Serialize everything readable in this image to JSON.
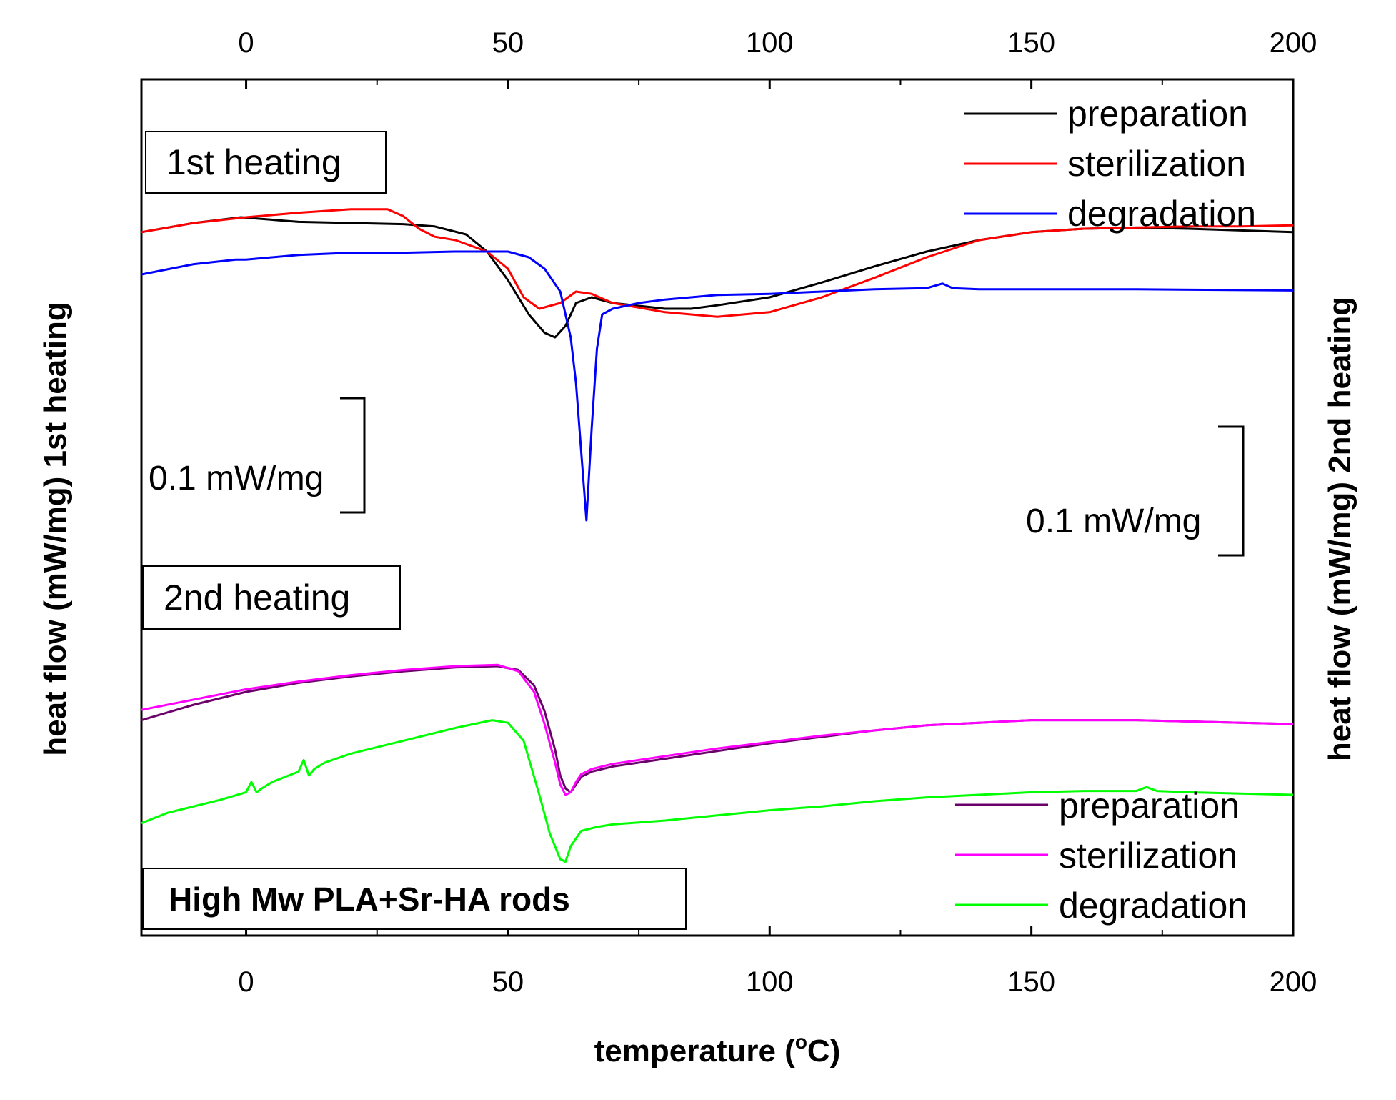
{
  "chart_data": {
    "type": "line",
    "title": "",
    "xlabel": "temperature (°C)",
    "xlabel_base": "temperature (",
    "xlabel_sup": "o",
    "xlabel_unit": "C)",
    "ylabel_left": "heat flow (mW/mg) 1st heating",
    "ylabel_right": "heat flow (mW/mg) 2nd heating",
    "xlim": [
      -20,
      200
    ],
    "x_ticks": [
      "0",
      "50",
      "100",
      "150",
      "200"
    ],
    "x_tick_values": [
      0,
      50,
      100,
      150,
      200
    ],
    "grid": false,
    "sample_label": "High Mw PLA+Sr-HA rods",
    "scale_bars": [
      {
        "name": "scale-bar-1st",
        "text": "0.1 mW/mg",
        "height_mW_mg": 0.1
      },
      {
        "name": "scale-bar-2nd",
        "text": "0.1 mW/mg",
        "height_mW_mg": 0.1
      }
    ],
    "panels": [
      {
        "name": "1st heating",
        "label": "1st heating",
        "legend_position": "top-right",
        "series": [
          {
            "name": "preparation",
            "color": "#000000",
            "x": [
              -20,
              -10,
              -1,
              10,
              30,
              36,
              42,
              46,
              50,
              54,
              57,
              59,
              61,
              63,
              66,
              70,
              80,
              85,
              90,
              100,
              110,
              120,
              130,
              140,
              150,
              160,
              170,
              180,
              200
            ],
            "y": [
              0.052,
              0.06,
              0.065,
              0.061,
              0.059,
              0.057,
              0.05,
              0.035,
              0.01,
              -0.02,
              -0.036,
              -0.04,
              -0.03,
              -0.01,
              -0.005,
              -0.01,
              -0.015,
              -0.015,
              -0.012,
              -0.005,
              0.008,
              0.022,
              0.035,
              0.045,
              0.052,
              0.055,
              0.056,
              0.055,
              0.052
            ]
          },
          {
            "name": "sterilization",
            "color": "#ff0000",
            "x": [
              -20,
              -10,
              0,
              10,
              20,
              27,
              30,
              33,
              36,
              40,
              46,
              50,
              53,
              56,
              60,
              63,
              66,
              70,
              80,
              90,
              100,
              110,
              120,
              130,
              140,
              150,
              160,
              170,
              180,
              190,
              200
            ],
            "y": [
              0.052,
              0.06,
              0.065,
              0.069,
              0.072,
              0.072,
              0.066,
              0.055,
              0.048,
              0.045,
              0.035,
              0.02,
              -0.005,
              -0.015,
              -0.01,
              0.0,
              -0.002,
              -0.01,
              -0.018,
              -0.022,
              -0.018,
              -0.005,
              0.012,
              0.03,
              0.045,
              0.052,
              0.055,
              0.056,
              0.057,
              0.057,
              0.058
            ]
          },
          {
            "name": "degradation",
            "color": "#0000ff",
            "x": [
              -20,
              -10,
              -2,
              0,
              10,
              20,
              30,
              40,
              50,
              54,
              57,
              60,
              62,
              63,
              64,
              65,
              66,
              67,
              68,
              70,
              75,
              80,
              90,
              100,
              110,
              120,
              130,
              133,
              135,
              140,
              150,
              170,
              200
            ],
            "y": [
              0.015,
              0.024,
              0.028,
              0.028,
              0.032,
              0.034,
              0.034,
              0.035,
              0.035,
              0.03,
              0.02,
              0.0,
              -0.04,
              -0.08,
              -0.14,
              -0.2,
              -0.12,
              -0.05,
              -0.02,
              -0.015,
              -0.01,
              -0.007,
              -0.003,
              -0.002,
              0.0,
              0.002,
              0.003,
              0.007,
              0.003,
              0.002,
              0.002,
              0.002,
              0.001
            ]
          }
        ]
      },
      {
        "name": "2nd heating",
        "label": "2nd heating",
        "legend_position": "bottom-right",
        "series": [
          {
            "name": "preparation",
            "color": "#6b006b",
            "x": [
              -20,
              -10,
              0,
              10,
              20,
              30,
              40,
              48,
              52,
              55,
              57,
              59,
              60,
              61,
              62,
              63,
              64,
              66,
              70,
              80,
              90,
              100,
              110,
              120,
              130,
              140,
              150,
              160,
              170,
              180,
              190,
              200
            ],
            "y": [
              -0.002,
              0.01,
              0.02,
              0.027,
              0.032,
              0.036,
              0.039,
              0.04,
              0.037,
              0.025,
              0.005,
              -0.025,
              -0.045,
              -0.055,
              -0.058,
              -0.052,
              -0.046,
              -0.042,
              -0.038,
              -0.032,
              -0.026,
              -0.02,
              -0.015,
              -0.01,
              -0.006,
              -0.004,
              -0.002,
              -0.002,
              -0.002,
              -0.003,
              -0.004,
              -0.005
            ]
          },
          {
            "name": "sterilization",
            "color": "#ff00ff",
            "x": [
              -20,
              -10,
              0,
              10,
              20,
              30,
              40,
              48,
              52,
              55,
              57,
              59,
              60,
              61,
              62,
              63,
              64,
              66,
              70,
              80,
              90,
              100,
              110,
              120,
              130,
              140,
              150,
              160,
              170,
              180,
              190,
              200
            ],
            "y": [
              0.006,
              0.014,
              0.022,
              0.028,
              0.033,
              0.037,
              0.04,
              0.041,
              0.036,
              0.02,
              -0.005,
              -0.035,
              -0.052,
              -0.06,
              -0.058,
              -0.05,
              -0.044,
              -0.04,
              -0.036,
              -0.03,
              -0.024,
              -0.019,
              -0.014,
              -0.01,
              -0.006,
              -0.004,
              -0.002,
              -0.002,
              -0.002,
              -0.003,
              -0.004,
              -0.005
            ]
          },
          {
            "name": "degradation",
            "color": "#00ff00",
            "x": [
              -20,
              -15,
              -5,
              0,
              1,
              2,
              3,
              5,
              10,
              11,
              12,
              13,
              15,
              20,
              30,
              40,
              47,
              50,
              53,
              56,
              58,
              60,
              61,
              62,
              64,
              67,
              70,
              80,
              90,
              100,
              110,
              120,
              130,
              140,
              150,
              160,
              170,
              172,
              174,
              180,
              190,
              200
            ],
            "y": [
              -0.082,
              -0.074,
              -0.064,
              -0.058,
              -0.05,
              -0.058,
              -0.055,
              -0.05,
              -0.042,
              -0.033,
              -0.045,
              -0.04,
              -0.035,
              -0.028,
              -0.018,
              -0.008,
              -0.002,
              -0.004,
              -0.018,
              -0.06,
              -0.09,
              -0.11,
              -0.112,
              -0.1,
              -0.088,
              -0.085,
              -0.083,
              -0.08,
              -0.076,
              -0.072,
              -0.069,
              -0.065,
              -0.062,
              -0.06,
              -0.058,
              -0.057,
              -0.057,
              -0.054,
              -0.057,
              -0.058,
              -0.059,
              -0.06
            ]
          }
        ]
      }
    ]
  }
}
